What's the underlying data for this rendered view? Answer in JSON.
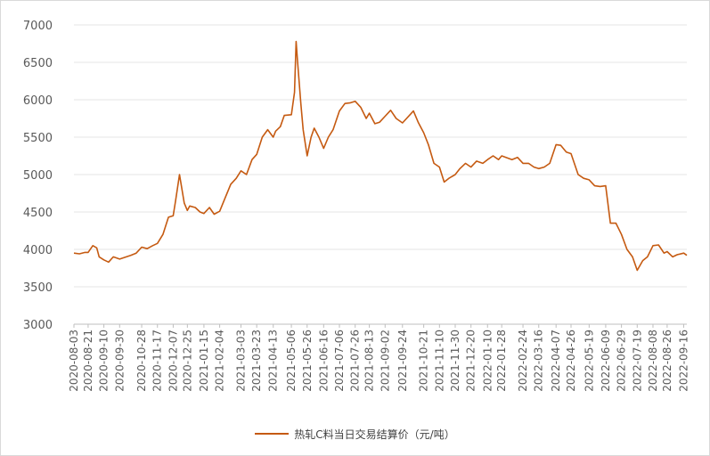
{
  "chart_data": {
    "type": "line",
    "title": "",
    "xlabel": "",
    "ylabel": "",
    "ylim": [
      3000,
      7000
    ],
    "yticks": [
      3000,
      3500,
      4000,
      4500,
      5000,
      5500,
      6000,
      6500,
      7000
    ],
    "x_tick_labels": [
      "2020-08-03",
      "2020-08-21",
      "2020-09-10",
      "2020-09-30",
      "2020-10-28",
      "2020-11-17",
      "2020-12-07",
      "2020-12-25",
      "2021-01-15",
      "2021-02-04",
      "2021-03-03",
      "2021-03-23",
      "2021-04-13",
      "2021-05-06",
      "2021-05-26",
      "2021-06-16",
      "2021-07-06",
      "2021-07-26",
      "2021-08-13",
      "2021-09-02",
      "2021-09-24",
      "2021-10-21",
      "2021-11-10",
      "2021-11-30",
      "2021-12-20",
      "2022-01-10",
      "2022-01-28",
      "2022-02-24",
      "2022-03-16",
      "2022-04-07",
      "2022-04-26",
      "2022-05-19",
      "2022-06-09",
      "2022-06-29",
      "2022-07-19",
      "2022-08-08",
      "2022-08-26",
      "2022-09-16"
    ],
    "grid": "horizontal",
    "legend_position": "bottom",
    "series": [
      {
        "name": "热轧C料当日交易结算价（元/吨）",
        "color": "#c55a11",
        "x": [
          "2020-08-03",
          "2020-08-10",
          "2020-08-17",
          "2020-08-21",
          "2020-08-27",
          "2020-09-01",
          "2020-09-04",
          "2020-09-10",
          "2020-09-16",
          "2020-09-22",
          "2020-09-30",
          "2020-10-14",
          "2020-10-21",
          "2020-10-28",
          "2020-11-04",
          "2020-11-11",
          "2020-11-17",
          "2020-11-24",
          "2020-12-01",
          "2020-12-07",
          "2020-12-10",
          "2020-12-15",
          "2020-12-21",
          "2020-12-25",
          "2020-12-28",
          "2021-01-04",
          "2021-01-10",
          "2021-01-15",
          "2021-01-22",
          "2021-01-28",
          "2021-02-04",
          "2021-02-18",
          "2021-02-25",
          "2021-03-03",
          "2021-03-10",
          "2021-03-17",
          "2021-03-23",
          "2021-03-30",
          "2021-04-06",
          "2021-04-13",
          "2021-04-16",
          "2021-04-22",
          "2021-04-27",
          "2021-05-06",
          "2021-05-10",
          "2021-05-12",
          "2021-05-14",
          "2021-05-18",
          "2021-05-21",
          "2021-05-26",
          "2021-05-31",
          "2021-06-04",
          "2021-06-10",
          "2021-06-16",
          "2021-06-22",
          "2021-06-28",
          "2021-07-06",
          "2021-07-13",
          "2021-07-20",
          "2021-07-26",
          "2021-08-02",
          "2021-08-09",
          "2021-08-13",
          "2021-08-20",
          "2021-08-26",
          "2021-09-02",
          "2021-09-09",
          "2021-09-16",
          "2021-09-24",
          "2021-10-08",
          "2021-10-14",
          "2021-10-21",
          "2021-10-27",
          "2021-11-03",
          "2021-11-10",
          "2021-11-16",
          "2021-11-22",
          "2021-11-30",
          "2021-12-06",
          "2021-12-13",
          "2021-12-20",
          "2021-12-27",
          "2022-01-04",
          "2022-01-10",
          "2022-01-17",
          "2022-01-24",
          "2022-01-28",
          "2022-02-10",
          "2022-02-17",
          "2022-02-24",
          "2022-03-03",
          "2022-03-10",
          "2022-03-16",
          "2022-03-23",
          "2022-03-30",
          "2022-04-07",
          "2022-04-13",
          "2022-04-20",
          "2022-04-26",
          "2022-05-05",
          "2022-05-12",
          "2022-05-19",
          "2022-05-26",
          "2022-06-02",
          "2022-06-09",
          "2022-06-15",
          "2022-06-22",
          "2022-06-29",
          "2022-07-06",
          "2022-07-13",
          "2022-07-19",
          "2022-07-26",
          "2022-08-01",
          "2022-08-08",
          "2022-08-15",
          "2022-08-22",
          "2022-08-26",
          "2022-09-02",
          "2022-09-08",
          "2022-09-16",
          "2022-09-20"
        ],
        "values": [
          3950,
          3940,
          3960,
          3960,
          4050,
          4020,
          3900,
          3860,
          3830,
          3900,
          3870,
          3920,
          3950,
          4030,
          4010,
          4050,
          4080,
          4200,
          4430,
          4450,
          4650,
          5000,
          4620,
          4520,
          4580,
          4560,
          4500,
          4480,
          4560,
          4470,
          4510,
          4870,
          4950,
          5050,
          5000,
          5200,
          5270,
          5500,
          5600,
          5500,
          5580,
          5640,
          5790,
          5800,
          6100,
          6780,
          6500,
          5950,
          5600,
          5250,
          5500,
          5620,
          5500,
          5350,
          5500,
          5600,
          5850,
          5950,
          5960,
          5980,
          5900,
          5750,
          5820,
          5680,
          5700,
          5780,
          5860,
          5750,
          5690,
          5850,
          5700,
          5560,
          5400,
          5150,
          5100,
          4900,
          4950,
          5000,
          5080,
          5150,
          5100,
          5180,
          5150,
          5200,
          5250,
          5200,
          5250,
          5200,
          5230,
          5150,
          5150,
          5100,
          5080,
          5100,
          5150,
          5400,
          5390,
          5300,
          5280,
          5000,
          4950,
          4930,
          4850,
          4840,
          4850,
          4350,
          4350,
          4200,
          4000,
          3900,
          3720,
          3850,
          3900,
          4050,
          4060,
          3950,
          3970,
          3900,
          3930,
          3950,
          3920
        ]
      }
    ]
  }
}
